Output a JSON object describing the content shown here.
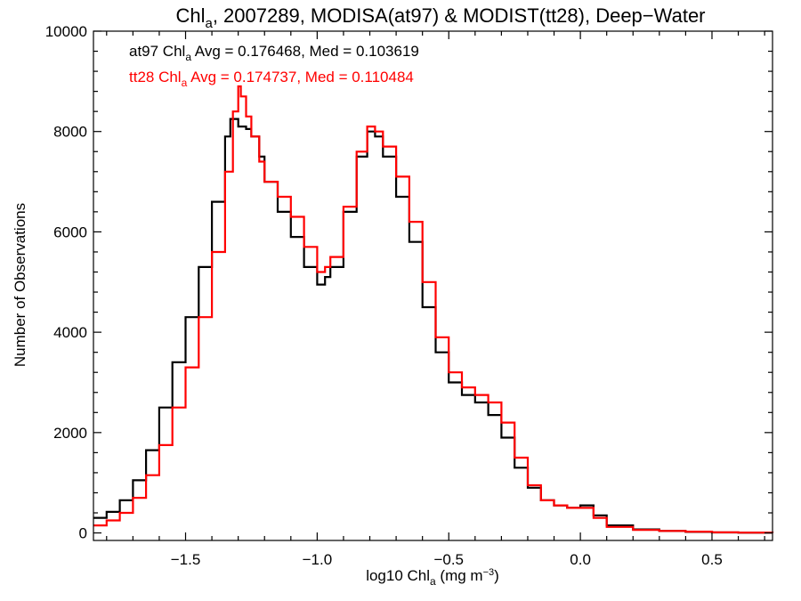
{
  "chart_data": {
    "type": "line",
    "step": true,
    "title": {
      "prefix": "Chl",
      "sub": "a",
      "rest": ", 2007289, MODISA(at97) & MODIST(tt28), Deep−Water"
    },
    "xlabel": {
      "prefix": "log10 Chl",
      "sub": "a",
      "rest": " (mg m",
      "sup": "−3",
      "close": ")"
    },
    "ylabel": "Number of Observations",
    "xlim": [
      -1.85,
      0.73
    ],
    "ylim": [
      -150,
      10000
    ],
    "xticks": [
      -1.5,
      -1.0,
      -0.5,
      0.0,
      0.5
    ],
    "xtick_labels": [
      "−1.5",
      "−1.0",
      "−0.5",
      "0.0",
      "0.5"
    ],
    "yticks": [
      0,
      2000,
      4000,
      6000,
      8000,
      10000
    ],
    "ytick_labels": [
      "0",
      "2000",
      "4000",
      "6000",
      "8000",
      "10000"
    ],
    "grid": false,
    "annotations": [
      {
        "prefix": "at97 Chl",
        "sub": "a",
        "rest": " Avg = 0.176468, Med = 0.103619",
        "color": "#000000"
      },
      {
        "prefix": "tt28 Chl",
        "sub": "a",
        "rest": " Avg = 0.174737, Med = 0.110484",
        "color": "#ff0000"
      }
    ],
    "series": [
      {
        "color": "#000000",
        "points": [
          [
            -1.85,
            300
          ],
          [
            -1.8,
            420
          ],
          [
            -1.75,
            650
          ],
          [
            -1.7,
            1050
          ],
          [
            -1.65,
            1650
          ],
          [
            -1.6,
            2500
          ],
          [
            -1.55,
            3400
          ],
          [
            -1.5,
            4300
          ],
          [
            -1.45,
            5300
          ],
          [
            -1.4,
            6600
          ],
          [
            -1.35,
            7900
          ],
          [
            -1.33,
            8250
          ],
          [
            -1.3,
            8100
          ],
          [
            -1.27,
            8050
          ],
          [
            -1.25,
            7900
          ],
          [
            -1.22,
            7500
          ],
          [
            -1.2,
            7000
          ],
          [
            -1.15,
            6400
          ],
          [
            -1.1,
            5900
          ],
          [
            -1.05,
            5300
          ],
          [
            -1.0,
            4950
          ],
          [
            -0.97,
            5100
          ],
          [
            -0.95,
            5300
          ],
          [
            -0.9,
            6400
          ],
          [
            -0.85,
            7500
          ],
          [
            -0.81,
            8000
          ],
          [
            -0.78,
            7900
          ],
          [
            -0.75,
            7500
          ],
          [
            -0.7,
            6700
          ],
          [
            -0.65,
            5800
          ],
          [
            -0.6,
            4500
          ],
          [
            -0.55,
            3600
          ],
          [
            -0.5,
            3000
          ],
          [
            -0.45,
            2750
          ],
          [
            -0.4,
            2600
          ],
          [
            -0.35,
            2350
          ],
          [
            -0.3,
            1900
          ],
          [
            -0.25,
            1300
          ],
          [
            -0.2,
            900
          ],
          [
            -0.15,
            650
          ],
          [
            -0.1,
            550
          ],
          [
            -0.05,
            500
          ],
          [
            0.0,
            550
          ],
          [
            0.05,
            350
          ],
          [
            0.1,
            150
          ],
          [
            0.2,
            70
          ],
          [
            0.3,
            40
          ],
          [
            0.4,
            20
          ],
          [
            0.5,
            10
          ],
          [
            0.6,
            5
          ],
          [
            0.73,
            0
          ]
        ]
      },
      {
        "color": "#ff0000",
        "points": [
          [
            -1.85,
            150
          ],
          [
            -1.8,
            250
          ],
          [
            -1.75,
            400
          ],
          [
            -1.7,
            700
          ],
          [
            -1.65,
            1150
          ],
          [
            -1.6,
            1750
          ],
          [
            -1.55,
            2500
          ],
          [
            -1.5,
            3300
          ],
          [
            -1.45,
            4300
          ],
          [
            -1.4,
            5600
          ],
          [
            -1.35,
            7200
          ],
          [
            -1.32,
            8400
          ],
          [
            -1.3,
            8900
          ],
          [
            -1.29,
            8700
          ],
          [
            -1.27,
            8300
          ],
          [
            -1.25,
            7900
          ],
          [
            -1.22,
            7400
          ],
          [
            -1.2,
            7000
          ],
          [
            -1.15,
            6700
          ],
          [
            -1.1,
            6300
          ],
          [
            -1.05,
            5700
          ],
          [
            -1.0,
            5200
          ],
          [
            -0.97,
            5300
          ],
          [
            -0.95,
            5500
          ],
          [
            -0.9,
            6500
          ],
          [
            -0.85,
            7600
          ],
          [
            -0.81,
            8100
          ],
          [
            -0.78,
            8000
          ],
          [
            -0.75,
            7700
          ],
          [
            -0.7,
            7100
          ],
          [
            -0.65,
            6200
          ],
          [
            -0.6,
            5000
          ],
          [
            -0.55,
            3900
          ],
          [
            -0.5,
            3200
          ],
          [
            -0.45,
            2900
          ],
          [
            -0.4,
            2750
          ],
          [
            -0.35,
            2600
          ],
          [
            -0.3,
            2200
          ],
          [
            -0.25,
            1500
          ],
          [
            -0.2,
            950
          ],
          [
            -0.15,
            650
          ],
          [
            -0.1,
            550
          ],
          [
            -0.05,
            500
          ],
          [
            0.0,
            500
          ],
          [
            0.05,
            300
          ],
          [
            0.1,
            120
          ],
          [
            0.2,
            60
          ],
          [
            0.3,
            40
          ],
          [
            0.4,
            25
          ],
          [
            0.5,
            12
          ],
          [
            0.6,
            6
          ],
          [
            0.73,
            0
          ]
        ]
      }
    ]
  }
}
